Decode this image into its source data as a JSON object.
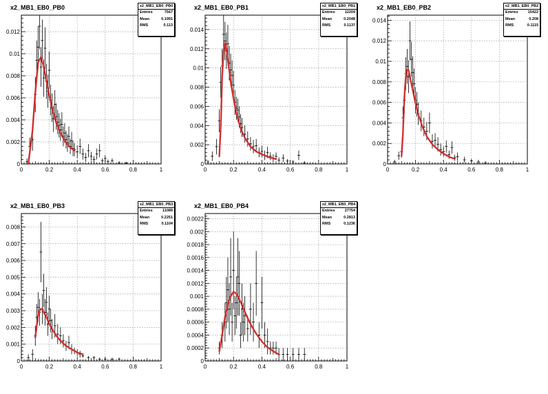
{
  "chart_data": [
    {
      "type": "line",
      "title": "x2_MB1_EB0_PB0",
      "stats": {
        "name": "x2_MB1_EB0_PB0",
        "entries_label": "Entries",
        "entries": "7567",
        "mean_label": "Mean",
        "mean": "0.1991",
        "rms_label": "RMS",
        "rms": "0.113"
      },
      "xlim": [
        0,
        1
      ],
      "ylim": [
        0,
        0.0135
      ],
      "xticks": [
        "0",
        "0.2",
        "0.4",
        "0.6",
        "0.8",
        "1"
      ],
      "xtick_values": [
        0,
        0.2,
        0.4,
        0.6,
        0.8,
        1
      ],
      "yticks": [
        "0",
        "0.002",
        "0.004",
        "0.006",
        "0.008",
        "0.01",
        "0.012"
      ],
      "ytick_values": [
        0,
        0.002,
        0.004,
        0.006,
        0.008,
        0.01,
        0.012
      ],
      "grid": true,
      "points": {
        "x": [
          0.04,
          0.06,
          0.08,
          0.1,
          0.11,
          0.12,
          0.13,
          0.14,
          0.15,
          0.16,
          0.17,
          0.18,
          0.19,
          0.2,
          0.21,
          0.22,
          0.23,
          0.24,
          0.25,
          0.26,
          0.27,
          0.28,
          0.29,
          0.3,
          0.31,
          0.32,
          0.33,
          0.34,
          0.35,
          0.36,
          0.37,
          0.38,
          0.4,
          0.42,
          0.44,
          0.46,
          0.48,
          0.5,
          0.52,
          0.54,
          0.56,
          0.58,
          0.6,
          0.62,
          0.65,
          0.7,
          0.75
        ],
        "y": [
          0.0002,
          0.0016,
          0.0022,
          0.0063,
          0.0094,
          0.0106,
          0.0125,
          0.0088,
          0.0112,
          0.0078,
          0.0105,
          0.0075,
          0.0066,
          0.0085,
          0.0058,
          0.0051,
          0.0041,
          0.0054,
          0.0043,
          0.0038,
          0.0035,
          0.0031,
          0.0036,
          0.0025,
          0.0028,
          0.0022,
          0.0019,
          0.0025,
          0.0016,
          0.0021,
          0.0014,
          0.0013,
          0.0011,
          0.0016,
          0.0009,
          0.0006,
          0.0012,
          0.0007,
          0.0004,
          0.0009,
          0.0012,
          0.0003,
          0.0005,
          0.0002,
          0.0003,
          0.0001,
          0.0001
        ],
        "err": [
          0.0003,
          0.0008,
          0.001,
          0.0016,
          0.0018,
          0.0019,
          0.0021,
          0.0018,
          0.0019,
          0.0017,
          0.0019,
          0.0016,
          0.0015,
          0.0017,
          0.0014,
          0.0013,
          0.0012,
          0.0013,
          0.0012,
          0.0011,
          0.0011,
          0.001,
          0.0011,
          0.0009,
          0.0009,
          0.0008,
          0.0008,
          0.0009,
          0.0007,
          0.0008,
          0.0007,
          0.0006,
          0.0006,
          0.0007,
          0.0005,
          0.0004,
          0.0006,
          0.0004,
          0.0003,
          0.0005,
          0.0006,
          0.0002,
          0.0003,
          0.0002,
          0.0002,
          0.0001,
          0.0001
        ]
      },
      "fit": {
        "x": [
          0.05,
          0.08,
          0.1,
          0.12,
          0.14,
          0.16,
          0.18,
          0.2,
          0.22,
          0.25,
          0.28,
          0.31,
          0.34,
          0.38
        ],
        "y": [
          0.0,
          0.003,
          0.0065,
          0.0092,
          0.0097,
          0.0088,
          0.0075,
          0.0062,
          0.005,
          0.0037,
          0.0028,
          0.0021,
          0.0016,
          0.0012
        ]
      }
    },
    {
      "type": "line",
      "title": "x2_MB1_EB0_PB1",
      "stats": {
        "name": "x2_MB1_EB0_PB1",
        "entries_label": "Entries",
        "entries": "12209",
        "mean_label": "Mean",
        "mean": "0.2048",
        "rms_label": "RMS",
        "rms": "0.1137"
      },
      "xlim": [
        0,
        1
      ],
      "ylim": [
        0,
        0.0155
      ],
      "xticks": [
        "0",
        "0.2",
        "0.4",
        "0.6",
        "0.8",
        "1"
      ],
      "xtick_values": [
        0,
        0.2,
        0.4,
        0.6,
        0.8,
        1
      ],
      "yticks": [
        "0",
        "0.002",
        "0.004",
        "0.006",
        "0.008",
        "0.01",
        "0.012",
        "0.014"
      ],
      "ytick_values": [
        0,
        0.002,
        0.004,
        0.006,
        0.008,
        0.01,
        0.012,
        0.014
      ],
      "grid": true,
      "points": {
        "x": [
          0.02,
          0.05,
          0.08,
          0.1,
          0.11,
          0.12,
          0.13,
          0.14,
          0.15,
          0.16,
          0.17,
          0.18,
          0.19,
          0.2,
          0.21,
          0.22,
          0.23,
          0.24,
          0.25,
          0.26,
          0.28,
          0.3,
          0.32,
          0.34,
          0.36,
          0.38,
          0.4,
          0.42,
          0.44,
          0.46,
          0.48,
          0.5,
          0.52,
          0.55,
          0.58,
          0.62,
          0.66,
          0.7
        ],
        "y": [
          0.0002,
          0.0008,
          0.0018,
          0.0045,
          0.0085,
          0.0102,
          0.0135,
          0.0128,
          0.0118,
          0.0125,
          0.0105,
          0.0098,
          0.0092,
          0.0082,
          0.0064,
          0.0058,
          0.0056,
          0.0049,
          0.0042,
          0.0038,
          0.0031,
          0.0026,
          0.0021,
          0.0018,
          0.0019,
          0.0012,
          0.0013,
          0.0009,
          0.0012,
          0.0008,
          0.0006,
          0.0008,
          0.0004,
          0.0006,
          0.0003,
          0.0002,
          0.0009,
          0.0001
        ],
        "err": [
          0.0002,
          0.0005,
          0.0008,
          0.0012,
          0.0016,
          0.0018,
          0.0021,
          0.002,
          0.0019,
          0.002,
          0.0018,
          0.0017,
          0.0016,
          0.0015,
          0.0013,
          0.0012,
          0.0012,
          0.0011,
          0.001,
          0.001,
          0.0009,
          0.0008,
          0.0007,
          0.0007,
          0.0007,
          0.0005,
          0.0006,
          0.0005,
          0.0006,
          0.0004,
          0.0004,
          0.0004,
          0.0003,
          0.0004,
          0.0002,
          0.0002,
          0.0005,
          0.0001
        ]
      },
      "fit": {
        "x": [
          0.1,
          0.11,
          0.12,
          0.13,
          0.14,
          0.15,
          0.16,
          0.18,
          0.2,
          0.22,
          0.25,
          0.28,
          0.32,
          0.36,
          0.4,
          0.45,
          0.5
        ],
        "y": [
          0.0008,
          0.004,
          0.009,
          0.0118,
          0.0126,
          0.012,
          0.0108,
          0.0086,
          0.0068,
          0.0053,
          0.0037,
          0.0027,
          0.0018,
          0.0013,
          0.001,
          0.0007,
          0.0005
        ]
      }
    },
    {
      "type": "line",
      "title": "x2_MB1_EB0_PB2",
      "stats": {
        "name": "x2_MB1_EB0_PB2",
        "entries_label": "Entries",
        "entries": "15422",
        "mean_label": "Mean",
        "mean": "0.208",
        "rms_label": "RMS",
        "rms": "0.1115"
      },
      "xlim": [
        0,
        1
      ],
      "ylim": [
        0,
        0.0145
      ],
      "xticks": [
        "0",
        "0.2",
        "0.4",
        "0.6",
        "0.8",
        "1"
      ],
      "xtick_values": [
        0,
        0.2,
        0.4,
        0.6,
        0.8,
        1
      ],
      "yticks": [
        "0",
        "0.002",
        "0.004",
        "0.006",
        "0.008",
        "0.01",
        "0.012",
        "0.014"
      ],
      "ytick_values": [
        0,
        0.002,
        0.004,
        0.006,
        0.008,
        0.01,
        0.012,
        0.014
      ],
      "grid": true,
      "points": {
        "x": [
          0.05,
          0.08,
          0.1,
          0.11,
          0.12,
          0.13,
          0.14,
          0.15,
          0.16,
          0.17,
          0.18,
          0.19,
          0.2,
          0.21,
          0.22,
          0.24,
          0.26,
          0.28,
          0.3,
          0.32,
          0.34,
          0.36,
          0.38,
          0.4,
          0.42,
          0.44,
          0.46,
          0.48,
          0.5,
          0.55,
          0.6,
          0.65,
          0.7
        ],
        "y": [
          0.0002,
          0.0008,
          0.0012,
          0.0045,
          0.0062,
          0.0088,
          0.0095,
          0.0085,
          0.012,
          0.0102,
          0.0089,
          0.0078,
          0.0062,
          0.0058,
          0.0049,
          0.0042,
          0.0036,
          0.0032,
          0.004,
          0.0022,
          0.0023,
          0.0019,
          0.0014,
          0.0012,
          0.0017,
          0.0009,
          0.0016,
          0.0006,
          0.0007,
          0.0004,
          0.0003,
          0.0002,
          0.0001
        ],
        "err": [
          0.0002,
          0.0004,
          0.0006,
          0.0011,
          0.0013,
          0.0016,
          0.0017,
          0.0016,
          0.0019,
          0.0017,
          0.0016,
          0.0015,
          0.0013,
          0.0012,
          0.0011,
          0.001,
          0.0009,
          0.0009,
          0.001,
          0.0007,
          0.0007,
          0.0007,
          0.0006,
          0.0005,
          0.0006,
          0.0004,
          0.0006,
          0.0003,
          0.0004,
          0.0003,
          0.0002,
          0.0002,
          0.0001
        ]
      },
      "fit": {
        "x": [
          0.1,
          0.11,
          0.12,
          0.13,
          0.14,
          0.15,
          0.16,
          0.18,
          0.2,
          0.22,
          0.25,
          0.28,
          0.32,
          0.36,
          0.4,
          0.44,
          0.48
        ],
        "y": [
          0.0008,
          0.003,
          0.0065,
          0.0085,
          0.0092,
          0.0091,
          0.0085,
          0.0072,
          0.0059,
          0.0048,
          0.0036,
          0.0027,
          0.0019,
          0.0014,
          0.001,
          0.0007,
          0.0005
        ]
      }
    },
    {
      "type": "line",
      "title": "x2_MB1_EB0_PB3",
      "stats": {
        "name": "x2_MB1_EB0_PB3",
        "entries_label": "Entries",
        "entries": "11089",
        "mean_label": "Mean",
        "mean": "0.2251",
        "rms_label": "RMS",
        "rms": "0.1104"
      },
      "xlim": [
        0,
        1
      ],
      "ylim": [
        0,
        0.0088
      ],
      "xticks": [
        "0",
        "0.2",
        "0.4",
        "0.6",
        "0.8",
        "1"
      ],
      "xtick_values": [
        0,
        0.2,
        0.4,
        0.6,
        0.8,
        1
      ],
      "yticks": [
        "0",
        "0.001",
        "0.002",
        "0.003",
        "0.004",
        "0.005",
        "0.006",
        "0.007",
        "0.008"
      ],
      "ytick_values": [
        0,
        0.001,
        0.002,
        0.003,
        0.004,
        0.005,
        0.006,
        0.007,
        0.008
      ],
      "grid": true,
      "points": {
        "x": [
          0.05,
          0.08,
          0.1,
          0.11,
          0.12,
          0.13,
          0.14,
          0.15,
          0.16,
          0.17,
          0.18,
          0.19,
          0.2,
          0.21,
          0.22,
          0.24,
          0.26,
          0.28,
          0.3,
          0.32,
          0.34,
          0.36,
          0.38,
          0.4,
          0.42,
          0.44,
          0.48,
          0.52,
          0.56,
          0.6,
          0.65,
          0.7
        ],
        "y": [
          0.0002,
          0.0004,
          0.0015,
          0.0026,
          0.0032,
          0.0029,
          0.0065,
          0.0031,
          0.0042,
          0.0029,
          0.0035,
          0.0022,
          0.0031,
          0.0024,
          0.0019,
          0.0021,
          0.0016,
          0.0015,
          0.0012,
          0.0009,
          0.0011,
          0.0007,
          0.0006,
          0.0005,
          0.0004,
          0.0003,
          0.0002,
          0.0002,
          0.0001,
          0.0001,
          0.0001,
          0.0001
        ],
        "err": [
          0.0002,
          0.0003,
          0.0006,
          0.0008,
          0.0009,
          0.0008,
          0.0018,
          0.0009,
          0.001,
          0.0008,
          0.0009,
          0.0007,
          0.0008,
          0.0007,
          0.0006,
          0.0007,
          0.0006,
          0.0005,
          0.0004,
          0.0003,
          0.0004,
          0.0003,
          0.0002,
          0.0002,
          0.0002,
          0.0001,
          0.0001,
          0.0001,
          0.0001,
          0.0001,
          0.0001,
          0.0001
        ]
      },
      "fit": {
        "x": [
          0.1,
          0.11,
          0.12,
          0.13,
          0.14,
          0.15,
          0.16,
          0.18,
          0.2,
          0.22,
          0.25,
          0.28,
          0.32,
          0.36,
          0.4,
          0.44
        ],
        "y": [
          0.0014,
          0.0021,
          0.0027,
          0.003,
          0.0031,
          0.0031,
          0.0029,
          0.0026,
          0.0022,
          0.0019,
          0.0015,
          0.0012,
          0.0009,
          0.0007,
          0.0005,
          0.0004
        ]
      }
    },
    {
      "type": "line",
      "title": "x2_MB1_EB0_PB4",
      "stats": {
        "name": "x2_MB1_EB0_PB4",
        "entries_label": "Entries",
        "entries": "27754",
        "mean_label": "Mean",
        "mean": "0.2813",
        "rms_label": "RMS",
        "rms": "0.1236"
      },
      "xlim": [
        0,
        1
      ],
      "ylim": [
        0,
        0.00228
      ],
      "xticks": [
        "0",
        "0.2",
        "0.4",
        "0.6",
        "0.8",
        "1"
      ],
      "xtick_values": [
        0,
        0.2,
        0.4,
        0.6,
        0.8,
        1
      ],
      "yticks": [
        "0",
        "0.0002",
        "0.0004",
        "0.0006",
        "0.0008",
        "0.001",
        "0.0012",
        "0.0014",
        "0.0016",
        "0.0018",
        "0.002",
        "0.0022"
      ],
      "ytick_values": [
        0,
        0.0002,
        0.0004,
        0.0006,
        0.0008,
        0.001,
        0.0012,
        0.0014,
        0.0016,
        0.0018,
        0.002,
        0.0022
      ],
      "grid": true,
      "points": {
        "x": [
          0.1,
          0.12,
          0.14,
          0.15,
          0.16,
          0.17,
          0.18,
          0.19,
          0.2,
          0.21,
          0.22,
          0.23,
          0.24,
          0.25,
          0.26,
          0.27,
          0.28,
          0.3,
          0.32,
          0.34,
          0.36,
          0.38,
          0.4,
          0.42,
          0.44,
          0.46,
          0.48,
          0.5,
          0.52,
          0.55,
          0.58,
          0.62,
          0.66,
          0.7
        ],
        "y": [
          0.0002,
          0.0004,
          0.0006,
          0.0009,
          0.0011,
          0.0008,
          0.0013,
          0.0006,
          0.0014,
          0.0007,
          0.0009,
          0.0013,
          0.0012,
          0.0004,
          0.0008,
          0.0006,
          0.0007,
          0.0005,
          0.0008,
          0.0006,
          0.0012,
          0.0004,
          0.0009,
          0.0004,
          0.0003,
          0.0002,
          0.0002,
          0.0002,
          0.0001,
          0.0001,
          0.0001,
          0.0001,
          0.0001,
          0.0001
        ],
        "err": [
          0.0001,
          0.0002,
          0.0003,
          0.0004,
          0.0005,
          0.0004,
          0.0006,
          0.0003,
          0.0006,
          0.0003,
          0.0004,
          0.0006,
          0.0005,
          0.0002,
          0.0004,
          0.0003,
          0.0003,
          0.0002,
          0.0004,
          0.0003,
          0.0005,
          0.0002,
          0.0004,
          0.0002,
          0.0002,
          0.0001,
          0.0001,
          0.0001,
          0.0001,
          0.0001,
          0.0001,
          0.0001,
          0.0001,
          0.0001
        ]
      },
      "fit": {
        "x": [
          0.1,
          0.12,
          0.14,
          0.16,
          0.18,
          0.2,
          0.22,
          0.24,
          0.26,
          0.28,
          0.3,
          0.33,
          0.36,
          0.4,
          0.44,
          0.48,
          0.52
        ],
        "y": [
          0.00015,
          0.0004,
          0.00068,
          0.00088,
          0.001,
          0.00107,
          0.00104,
          0.00096,
          0.00086,
          0.00076,
          0.00066,
          0.00053,
          0.00042,
          0.0003,
          0.00021,
          0.00015,
          0.0001
        ]
      }
    }
  ]
}
